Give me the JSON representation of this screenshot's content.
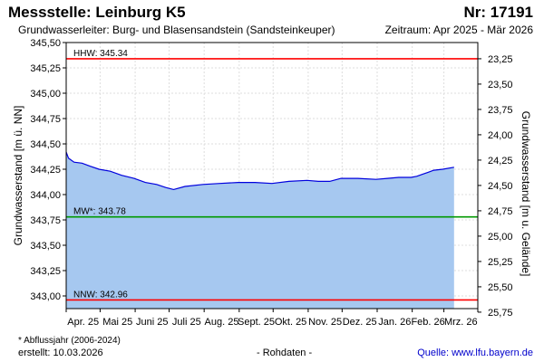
{
  "header": {
    "title": "Messstelle: Leinburg K5",
    "station_nr": "Nr: 17191",
    "aquifer": "Grundwasserleiter:   Burg- und Blasensandstein (Sandsteinkeuper)",
    "period": "Zeitraum: Apr 2025 - Mär 2026"
  },
  "footer": {
    "footnote": "* Abflussjahr (2006-2024)",
    "created": "erstellt:  10.03.2026",
    "rawdata": "- Rohdaten -",
    "source": "Quelle: www.lfu.bayern.de"
  },
  "chart_data": {
    "type": "area",
    "ylabel": "Grundwasserstand [m ü. NN]",
    "y2label": "Grundwasserstand [m u. Gelände]",
    "ylim": [
      342.875,
      345.5
    ],
    "y_ticks": [
      "345,50",
      "345,25",
      "345,00",
      "344,75",
      "344,50",
      "344,25",
      "344,00",
      "343,75",
      "343,50",
      "343,25",
      "343,00"
    ],
    "y2_ticks": [
      "23,25",
      "23,50",
      "23,75",
      "24,00",
      "24,25",
      "24,50",
      "24,75",
      "25,00",
      "25,25",
      "25,50",
      "25,75"
    ],
    "y2_tick_values": [
      345.34,
      345.09,
      344.84,
      344.59,
      344.34,
      344.09,
      343.84,
      343.59,
      343.34,
      343.09,
      342.84
    ],
    "x_ticks": [
      "Apr. 25",
      "Mai 25",
      "Juni 25",
      "Juli 25",
      "Aug. 25",
      "Sept. 25",
      "Okt. 25",
      "Nov. 25",
      "Dez. 25",
      "Jan. 26",
      "Feb. 26",
      "Mrz. 26"
    ],
    "x_range": [
      "2025-04-01",
      "2026-03-31"
    ],
    "grid": true,
    "colors": {
      "series": "#0000dd",
      "fill": "#a6c8f0",
      "extremes": "#ff0000",
      "mean": "#009900"
    },
    "reference_lines": [
      {
        "label": "HHW: 345.34",
        "value": 345.34,
        "kind": "extreme"
      },
      {
        "label": "MW*: 343.78",
        "value": 343.78,
        "kind": "mean"
      },
      {
        "label": "NNW: 342.96",
        "value": 342.96,
        "kind": "extreme"
      }
    ],
    "series": [
      {
        "x": [
          "2025-04-01",
          "2025-04-03",
          "2025-04-08",
          "2025-04-15",
          "2025-04-22",
          "2025-04-30",
          "2025-05-10",
          "2025-05-20",
          "2025-05-31",
          "2025-06-10",
          "2025-06-20",
          "2025-06-28",
          "2025-07-05",
          "2025-07-15",
          "2025-07-31",
          "2025-08-15",
          "2025-08-31",
          "2025-09-15",
          "2025-09-30",
          "2025-10-15",
          "2025-10-31",
          "2025-11-10",
          "2025-11-20",
          "2025-11-30",
          "2025-12-15",
          "2025-12-31",
          "2026-01-10",
          "2026-01-20",
          "2026-01-31",
          "2026-02-05",
          "2026-02-10",
          "2026-02-15",
          "2026-02-20",
          "2026-02-28",
          "2026-03-10"
        ],
        "y": [
          344.42,
          344.36,
          344.32,
          344.31,
          344.28,
          344.25,
          344.23,
          344.19,
          344.16,
          344.12,
          344.1,
          344.07,
          344.05,
          344.08,
          344.1,
          344.11,
          344.12,
          344.12,
          344.11,
          344.13,
          344.14,
          344.13,
          344.13,
          344.16,
          344.16,
          344.15,
          344.16,
          344.17,
          344.17,
          344.18,
          344.2,
          344.22,
          344.24,
          344.25,
          344.27
        ]
      }
    ]
  }
}
